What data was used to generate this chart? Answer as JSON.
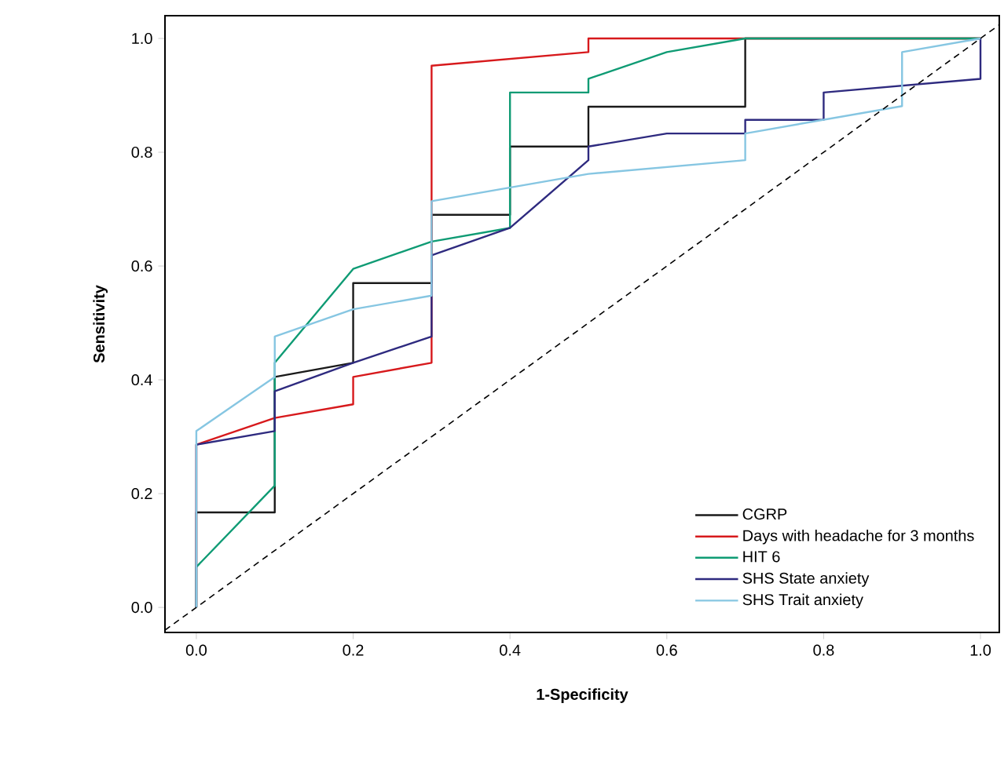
{
  "chart_data": {
    "type": "line",
    "xlabel": "1-Specificity",
    "ylabel": "Sensitivity",
    "xlim": [
      -0.04,
      1.024
    ],
    "ylim": [
      -0.044,
      1.04
    ],
    "xticks": [
      {
        "value": 0,
        "label": "0.0"
      },
      0.2,
      0.4,
      0.6,
      0.8,
      {
        "value": 1,
        "label": "1.0"
      }
    ],
    "yticks": [
      {
        "value": 0,
        "label": "0.0"
      },
      0.2,
      0.4,
      0.6,
      0.8,
      {
        "value": 1,
        "label": "1.0"
      }
    ],
    "grid": false,
    "legend": "bottom right",
    "marker": "none",
    "series": [
      {
        "name": "CGRP",
        "color": "#1a1a1a",
        "x": [
          0,
          0,
          0.1,
          0.1,
          0.2,
          0.2,
          0.3,
          0.3,
          0.4,
          0.4,
          0.5,
          0.5,
          0.7,
          0.7,
          1
        ],
        "values": [
          0,
          0.167,
          0.167,
          0.405,
          0.43,
          0.57,
          0.57,
          0.69,
          0.69,
          0.81,
          0.81,
          0.88,
          0.88,
          1,
          1
        ]
      },
      {
        "name": "Days with headache for 3 months",
        "color": "#d7191c",
        "x": [
          0,
          0,
          0.1,
          0.2,
          0.2,
          0.3,
          0.3,
          0.5,
          0.5,
          1
        ],
        "values": [
          0,
          0.286,
          0.333,
          0.357,
          0.405,
          0.43,
          0.952,
          0.976,
          1,
          1
        ]
      },
      {
        "name": "HIT 6",
        "color": "#0f9b74",
        "x": [
          0,
          0,
          0.1,
          0.1,
          0.2,
          0.3,
          0.4,
          0.4,
          0.5,
          0.5,
          0.6,
          0.7,
          1
        ],
        "values": [
          0,
          0.071,
          0.214,
          0.43,
          0.595,
          0.643,
          0.667,
          0.905,
          0.905,
          0.929,
          0.976,
          1,
          1
        ]
      },
      {
        "name": "SHS State anxiety",
        "color": "#2e2a7f",
        "x": [
          0,
          0,
          0.1,
          0.1,
          0.2,
          0.3,
          0.3,
          0.4,
          0.5,
          0.5,
          0.6,
          0.7,
          0.7,
          0.8,
          0.8,
          1,
          1
        ],
        "values": [
          0,
          0.286,
          0.31,
          0.38,
          0.43,
          0.476,
          0.619,
          0.667,
          0.786,
          0.81,
          0.833,
          0.833,
          0.857,
          0.857,
          0.905,
          0.929,
          1
        ]
      },
      {
        "name": "SHS Trait anxiety",
        "color": "#86c6e2",
        "x": [
          0,
          0,
          0.1,
          0.1,
          0.2,
          0.3,
          0.3,
          0.5,
          0.7,
          0.7,
          0.9,
          0.9,
          1
        ],
        "values": [
          0,
          0.31,
          0.405,
          0.476,
          0.524,
          0.548,
          0.714,
          0.762,
          0.786,
          0.833,
          0.881,
          0.976,
          1
        ]
      },
      {
        "color": "#000000",
        "line_style": "dashed",
        "x": [
          -0.04,
          1.024
        ],
        "values": [
          -0.04,
          1.024
        ]
      }
    ]
  }
}
